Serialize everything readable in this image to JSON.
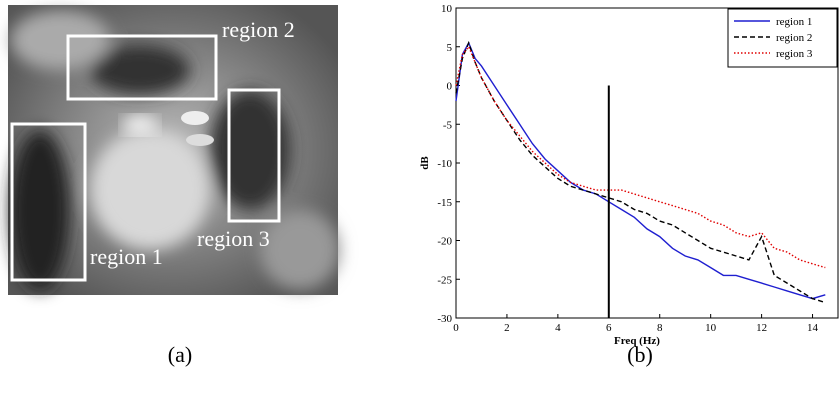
{
  "panel_a": {
    "labels": [
      "region 1",
      "region 2",
      "region 3"
    ],
    "caption": "(a)"
  },
  "chart_data": {
    "type": "line",
    "caption": "(b)",
    "xlabel": "Freq (Hz)",
    "ylabel": "dB",
    "x": [
      0,
      0.25,
      0.5,
      0.75,
      1,
      1.5,
      2,
      2.5,
      3,
      3.5,
      4,
      4.5,
      5,
      5.5,
      6,
      6.5,
      7,
      7.5,
      8,
      8.5,
      9,
      9.5,
      10,
      10.5,
      11,
      11.5,
      12,
      12.5,
      13,
      13.5,
      14,
      14.5
    ],
    "series": [
      {
        "name": "region 1",
        "color": "#1f1fd0",
        "style": "solid",
        "values": [
          -2,
          4,
          5.5,
          3.5,
          2.5,
          0,
          -2.5,
          -5,
          -7.5,
          -9.5,
          -11,
          -12.5,
          -13.5,
          -14,
          -15,
          -16,
          -17,
          -18.5,
          -19.5,
          -21,
          -22,
          -22.5,
          -23.5,
          -24.5,
          -24.5,
          -25,
          -25.5,
          -26,
          -26.5,
          -27,
          -27.5,
          -27
        ]
      },
      {
        "name": "region 2",
        "color": "#000000",
        "style": "dashed",
        "values": [
          -1,
          3.5,
          5.5,
          3,
          1,
          -2,
          -4.5,
          -7,
          -9,
          -10.5,
          -12,
          -13,
          -13.5,
          -14,
          -14.5,
          -15,
          -16,
          -16.5,
          -17.5,
          -18,
          -19,
          -20,
          -21,
          -21.5,
          -22,
          -22.5,
          -19.5,
          -24.5,
          -25.5,
          -26.5,
          -27.5,
          -28
        ]
      },
      {
        "name": "region 3",
        "color": "#e00000",
        "style": "dotted",
        "values": [
          0,
          4,
          5,
          3,
          1,
          -2,
          -4.5,
          -6.5,
          -8.5,
          -10,
          -11.5,
          -12.5,
          -13,
          -13.5,
          -13.5,
          -13.5,
          -14,
          -14.5,
          -15,
          -15.5,
          -16,
          -16.5,
          -17.5,
          -18,
          -19,
          -19.5,
          -19,
          -21,
          -21.5,
          -22.5,
          -23,
          -23.5
        ]
      }
    ],
    "xlim": [
      0,
      15
    ],
    "ylim": [
      -30,
      10
    ],
    "xticks": [
      0,
      2,
      4,
      6,
      8,
      10,
      12,
      14
    ],
    "yticks": [
      -30,
      -25,
      -20,
      -15,
      -10,
      -5,
      0,
      5,
      10
    ],
    "vline": {
      "x": 6,
      "ymin": -30,
      "ymax": 0
    },
    "legend": "top-right"
  }
}
